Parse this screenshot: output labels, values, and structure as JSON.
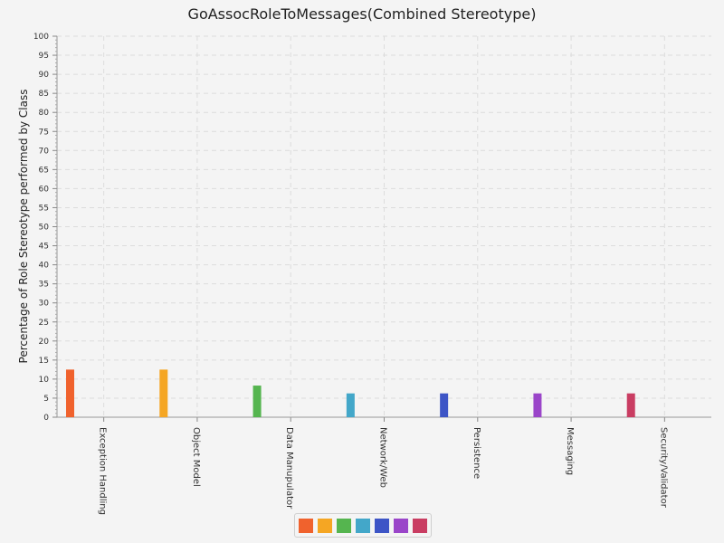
{
  "chart_data": {
    "type": "bar",
    "title": "GoAssocRoleToMessages(Combined Stereotype)",
    "ylabel": "Percentage of Role Stereotype performed by Class",
    "xlabel": "",
    "ylim": [
      0,
      100
    ],
    "ytick_step": 5,
    "grid": true,
    "legend_placement": "bottom",
    "categories": [
      "Exception Handling",
      "Object Model",
      "Data Manupulator",
      "Network/Web",
      "Persistence",
      "Messaging",
      "Security/Validator"
    ],
    "values": [
      12.5,
      12.5,
      8.3,
      6.25,
      6.25,
      6.25,
      6.25
    ],
    "colors": [
      "#f0622d",
      "#f5a623",
      "#55b54f",
      "#43a7c9",
      "#3d55c6",
      "#9a45c9",
      "#c93d62"
    ]
  }
}
